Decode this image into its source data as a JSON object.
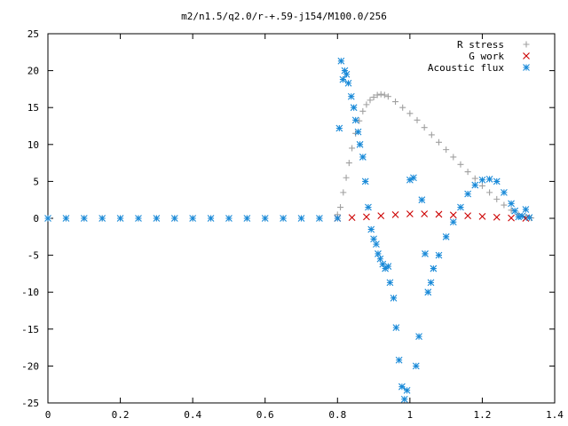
{
  "chart_data": {
    "type": "scatter",
    "title": "m2/n1.5/q2.0/r-+.59-j154/M100.0/256",
    "xlabel": "",
    "ylabel": "",
    "xlim": [
      0,
      1.4
    ],
    "ylim": [
      -25,
      25
    ],
    "xticks": [
      "0",
      "0.2",
      "0.4",
      "0.6",
      "0.8",
      "1",
      "1.2",
      "1.4"
    ],
    "yticks": [
      "25",
      "20",
      "15",
      "10",
      "5",
      "0",
      "-5",
      "-10",
      "-15",
      "-20",
      "-25"
    ],
    "grid": false,
    "legend_position": "top-right",
    "series": [
      {
        "name": "R stress",
        "marker": "plus",
        "color": "#a0a0a0",
        "x": [
          0,
          0.05,
          0.1,
          0.15,
          0.2,
          0.25,
          0.3,
          0.35,
          0.4,
          0.45,
          0.5,
          0.55,
          0.6,
          0.65,
          0.7,
          0.75,
          0.8,
          0.808,
          0.816,
          0.824,
          0.832,
          0.84,
          0.85,
          0.86,
          0.87,
          0.88,
          0.89,
          0.9,
          0.91,
          0.92,
          0.93,
          0.94,
          0.96,
          0.98,
          1.0,
          1.02,
          1.04,
          1.06,
          1.08,
          1.1,
          1.12,
          1.14,
          1.16,
          1.18,
          1.2,
          1.22,
          1.24,
          1.26,
          1.28,
          1.3,
          1.32,
          1.335
        ],
        "y": [
          0,
          0,
          0,
          0,
          0,
          0,
          0,
          0,
          0,
          0,
          0,
          0,
          0,
          0,
          0,
          0,
          0.5,
          1.5,
          3.5,
          5.5,
          7.5,
          9.5,
          11.5,
          13.2,
          14.5,
          15.4,
          16.0,
          16.4,
          16.7,
          16.8,
          16.7,
          16.5,
          15.8,
          15.0,
          14.2,
          13.3,
          12.3,
          11.3,
          10.3,
          9.3,
          8.3,
          7.3,
          6.3,
          5.4,
          4.4,
          3.5,
          2.6,
          1.8,
          1.1,
          0.5,
          0.2,
          0.05
        ]
      },
      {
        "name": "G work",
        "marker": "cross",
        "color": "#cc0000",
        "x": [
          0.8,
          0.84,
          0.88,
          0.92,
          0.96,
          1.0,
          1.04,
          1.08,
          1.12,
          1.16,
          1.2,
          1.24,
          1.28,
          1.32
        ],
        "y": [
          0,
          0.1,
          0.2,
          0.35,
          0.5,
          0.6,
          0.6,
          0.55,
          0.45,
          0.35,
          0.25,
          0.15,
          0.05,
          0
        ]
      },
      {
        "name": "Acoustic flux",
        "marker": "star",
        "color": "#1a8ad8",
        "x": [
          0,
          0.05,
          0.1,
          0.15,
          0.2,
          0.25,
          0.3,
          0.35,
          0.4,
          0.45,
          0.5,
          0.55,
          0.6,
          0.65,
          0.7,
          0.75,
          0.8,
          0.805,
          0.81,
          0.815,
          0.82,
          0.825,
          0.83,
          0.838,
          0.845,
          0.85,
          0.857,
          0.862,
          0.87,
          0.877,
          0.885,
          0.893,
          0.9,
          0.907,
          0.912,
          0.918,
          0.925,
          0.932,
          0.94,
          0.945,
          0.955,
          0.962,
          0.97,
          0.978,
          0.985,
          0.992,
          1.0,
          1.01,
          1.017,
          1.025,
          1.033,
          1.042,
          1.05,
          1.058,
          1.065,
          1.08,
          1.1,
          1.12,
          1.14,
          1.16,
          1.18,
          1.2,
          1.22,
          1.24,
          1.26,
          1.28,
          1.29,
          1.3,
          1.31,
          1.32,
          1.33
        ],
        "y": [
          0,
          0,
          0,
          0,
          0,
          0,
          0,
          0,
          0,
          0,
          0,
          0,
          0,
          0,
          0,
          0,
          0,
          12.2,
          21.3,
          18.8,
          20.0,
          19.5,
          18.3,
          16.5,
          15.0,
          13.3,
          11.7,
          10.0,
          8.3,
          5.0,
          1.5,
          -1.5,
          -2.8,
          -3.5,
          -4.8,
          -5.5,
          -6.2,
          -6.8,
          -6.5,
          -8.7,
          -10.8,
          -14.8,
          -19.2,
          -22.8,
          -24.5,
          -23.3,
          5.2,
          5.5,
          -20.0,
          -16.0,
          2.5,
          -4.8,
          -10.0,
          -8.7,
          -6.8,
          -5.0,
          -2.5,
          -0.5,
          1.5,
          3.3,
          4.5,
          5.2,
          5.3,
          5.0,
          3.5,
          2.0,
          1.0,
          0.2,
          0.3,
          1.2,
          0.1
        ]
      }
    ]
  }
}
